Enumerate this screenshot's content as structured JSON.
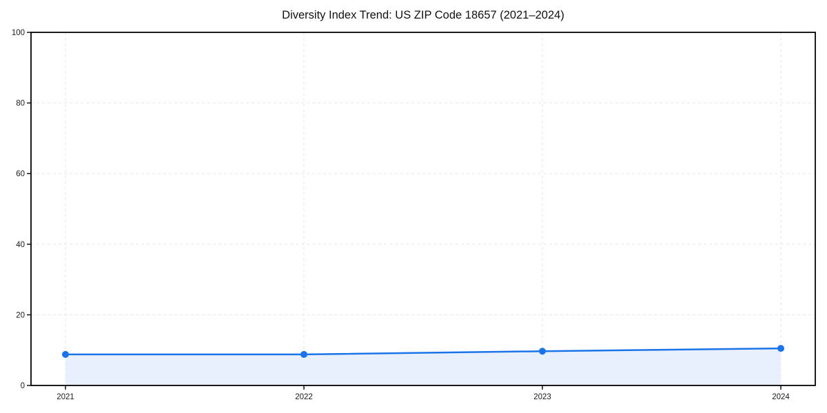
{
  "chart_data": {
    "type": "line",
    "title": "Diversity Index Trend: US ZIP Code 18657 (2021–2024)",
    "categories": [
      "2021",
      "2022",
      "2023",
      "2024"
    ],
    "values": [
      8.8,
      8.8,
      9.7,
      10.5
    ],
    "series_name": "Diversity Index",
    "xlabel": "",
    "ylabel": "",
    "ylim": [
      0,
      100
    ],
    "y_ticks": [
      0,
      20,
      40,
      60,
      80,
      100
    ],
    "grid": "dashed",
    "legend_position": "none",
    "area_fill": true,
    "marker": "circle",
    "colors": {
      "line": "#1a73e8",
      "marker": "#1a73e8",
      "fill": "#e8f0fe",
      "grid": "#e6e6e6",
      "spine": "#000000",
      "tick_label": "#1a1a1a",
      "title": "#111111",
      "background": "#ffffff"
    }
  }
}
